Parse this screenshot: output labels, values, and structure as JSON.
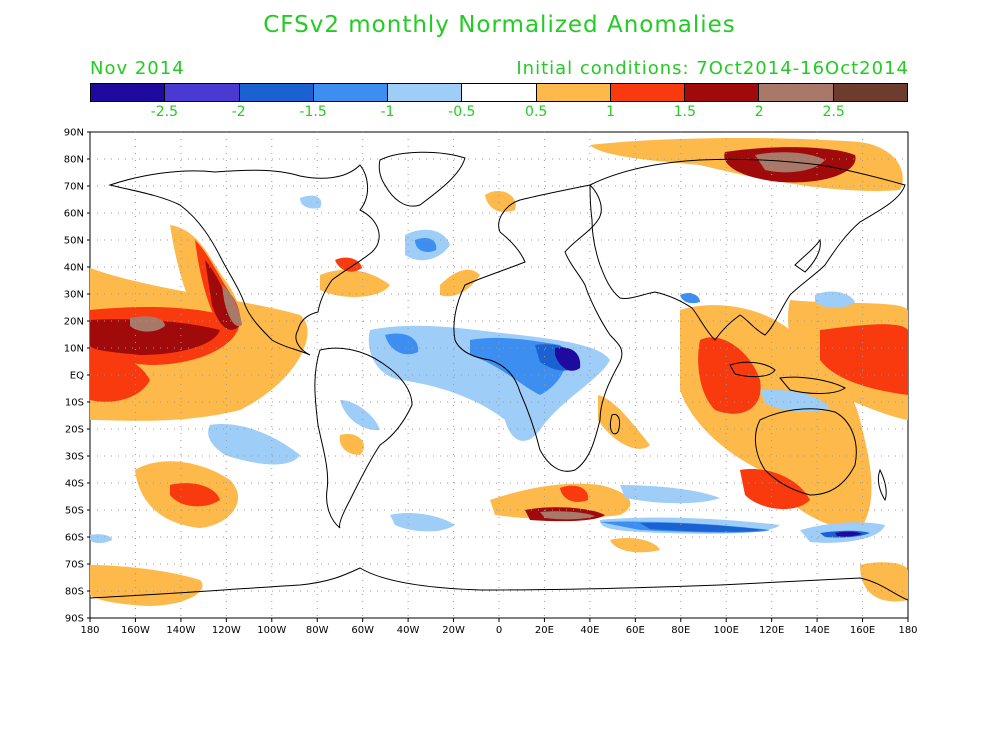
{
  "header": {
    "title": "CFSv2 monthly Normalized Anomalies",
    "valid_month": "Nov 2014",
    "initial_conditions": "Initial conditions: 7Oct2014-16Oct2014"
  },
  "colorbar": {
    "colors": [
      "#1f0aa0",
      "#4a3ad2",
      "#1a62d2",
      "#3c8ff0",
      "#9ecdf8",
      "#ffffff",
      "#fdb94a",
      "#f83a0e",
      "#a00a0a",
      "#a87868",
      "#6e3c2c"
    ],
    "labels": [
      "-2.5",
      "-2",
      "-1.5",
      "-1",
      "-0.5",
      "0.5",
      "1",
      "1.5",
      "2",
      "2.5"
    ]
  },
  "axes": {
    "lat_labels": [
      "90N",
      "80N",
      "70N",
      "60N",
      "50N",
      "40N",
      "30N",
      "20N",
      "10N",
      "EQ",
      "10S",
      "20S",
      "30S",
      "40S",
      "50S",
      "60S",
      "70S",
      "80S",
      "90S"
    ],
    "lon_labels": [
      "180",
      "160W",
      "140W",
      "120W",
      "100W",
      "80W",
      "60W",
      "40W",
      "20W",
      "0",
      "20E",
      "40E",
      "60E",
      "80E",
      "100E",
      "120E",
      "140E",
      "160E",
      "180"
    ]
  }
}
